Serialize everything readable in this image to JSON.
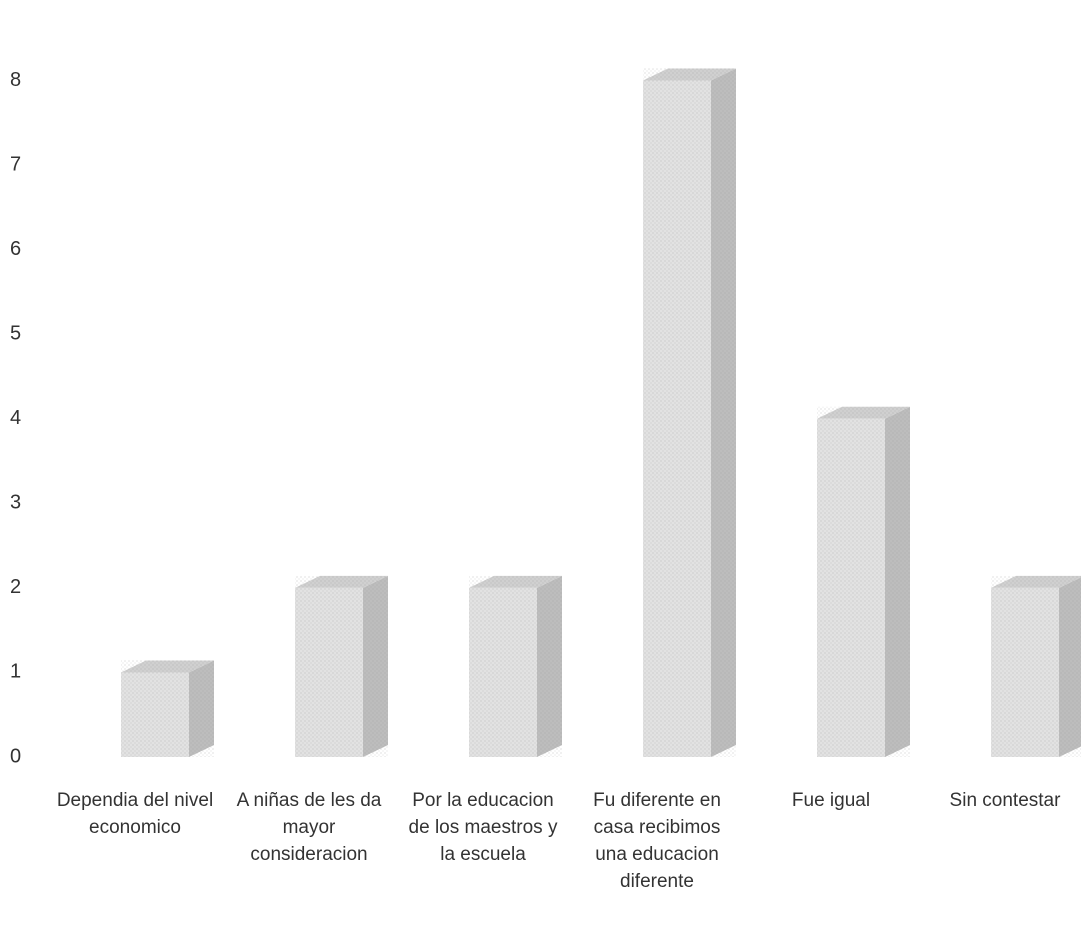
{
  "chart_data": {
    "type": "bar3d",
    "categories": [
      "Dependia del nivel economico",
      "A niñas de les da mayor consideracion",
      "Por la educacion de los maestros y la escuela",
      "Fu diferente en casa recibimos una educacion diferente",
      "Fue igual",
      "Sin contestar"
    ],
    "values": [
      1,
      2,
      2,
      8,
      4,
      2
    ],
    "color": "#e2e2e2",
    "ylim": [
      0,
      9
    ],
    "yticks": [
      0,
      1,
      2,
      3,
      4,
      5,
      6,
      7,
      8
    ],
    "grid": false
  }
}
